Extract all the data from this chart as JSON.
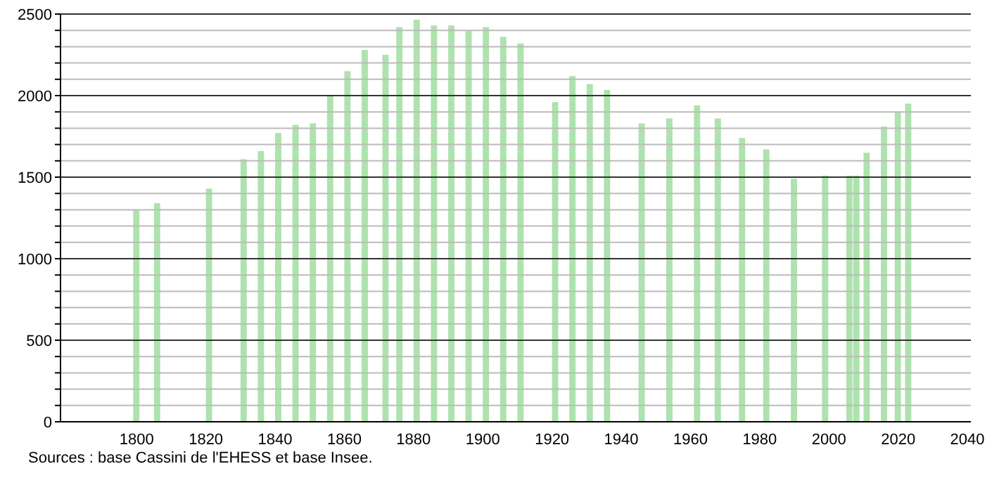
{
  "chart_data": {
    "type": "bar",
    "x": [
      1800,
      1806,
      1821,
      1831,
      1836,
      1841,
      1846,
      1851,
      1856,
      1861,
      1866,
      1872,
      1876,
      1881,
      1886,
      1891,
      1896,
      1901,
      1906,
      1911,
      1921,
      1926,
      1931,
      1936,
      1946,
      1954,
      1962,
      1968,
      1975,
      1982,
      1990,
      1999,
      2006,
      2008,
      2011,
      2016,
      2020,
      2023
    ],
    "values": [
      1300,
      1340,
      1430,
      1610,
      1660,
      1770,
      1820,
      1830,
      2000,
      2150,
      2280,
      2250,
      2420,
      2465,
      2430,
      2430,
      2395,
      2420,
      2360,
      2320,
      1960,
      2120,
      2070,
      2035,
      1830,
      1860,
      1940,
      1860,
      1740,
      1670,
      1490,
      1510,
      1510,
      1510,
      1650,
      1810,
      1900,
      1950
    ],
    "color": "#aee2ae",
    "xlim": [
      1778,
      2041
    ],
    "xticks": [
      1800,
      1820,
      1840,
      1860,
      1880,
      1900,
      1920,
      1940,
      1960,
      1980,
      2000,
      2020,
      2040
    ],
    "ylim": [
      0,
      2500
    ],
    "yticks": [
      0,
      {
        "value": 100,
        "label": null
      },
      {
        "value": 200,
        "label": null
      },
      {
        "value": 300,
        "label": null
      },
      {
        "value": 400,
        "label": null
      },
      500,
      {
        "value": 600,
        "label": null
      },
      {
        "value": 700,
        "label": null
      },
      {
        "value": 800,
        "label": null
      },
      {
        "value": 900,
        "label": null
      },
      1000,
      {
        "value": 1100,
        "label": null
      },
      {
        "value": 1200,
        "label": null
      },
      {
        "value": 1300,
        "label": null
      },
      {
        "value": 1400,
        "label": null
      },
      1500,
      {
        "value": 1600,
        "label": null
      },
      {
        "value": 1700,
        "label": null
      },
      {
        "value": 1800,
        "label": null
      },
      {
        "value": 1900,
        "label": null
      },
      2000,
      {
        "value": 2100,
        "label": null
      },
      {
        "value": 2200,
        "label": null
      },
      {
        "value": 2300,
        "label": null
      },
      {
        "value": 2400,
        "label": null
      },
      2500
    ],
    "grid": "y",
    "annotations": [
      "Sources : base Cassini de l'EHESS et base Insee."
    ]
  }
}
